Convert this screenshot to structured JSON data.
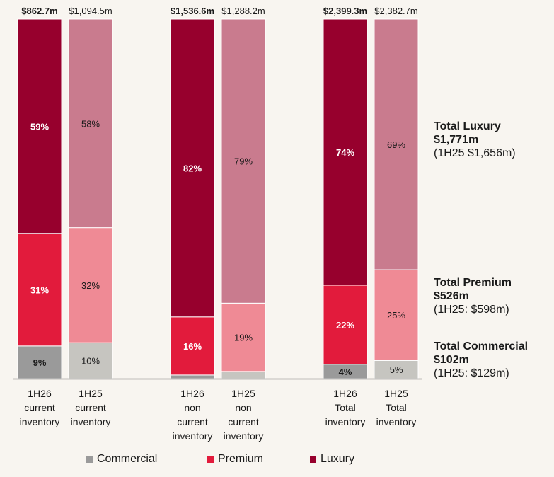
{
  "colors": {
    "luxury": "#97002d",
    "luxury_light": "#c97b8e",
    "premium": "#e21b3c",
    "premium_light": "#ef8a95",
    "commercial": "#9a9a9a",
    "commercial_light": "#c6c5c0"
  },
  "chart_data": {
    "type": "bar",
    "stacked": true,
    "normalized": true,
    "categories": [
      [
        "1H26",
        "current",
        "inventory"
      ],
      [
        "1H25",
        "current",
        "inventory"
      ],
      [
        "1H26",
        "non",
        "current",
        "inventory"
      ],
      [
        "1H25",
        "non",
        "current",
        "inventory"
      ],
      [
        "1H26",
        "Total",
        "inventory"
      ],
      [
        "1H25",
        "Total",
        "inventory"
      ]
    ],
    "totals": [
      "$862.7m",
      "$1,094.5m",
      "$1,536.6m",
      "$1,288.2m",
      "$2,399.3m",
      "$2,382.7m"
    ],
    "current_period": [
      true,
      false,
      true,
      false,
      true,
      false
    ],
    "series": [
      {
        "name": "Commercial",
        "values": [
          9,
          10,
          1,
          2,
          4,
          5
        ],
        "labels": [
          "9%",
          "10%",
          "",
          "",
          "4%",
          "5%"
        ]
      },
      {
        "name": "Premium",
        "values": [
          31,
          32,
          16,
          19,
          22,
          25
        ],
        "labels": [
          "31%",
          "32%",
          "16%",
          "19%",
          "22%",
          "25%"
        ]
      },
      {
        "name": "Luxury",
        "values": [
          59,
          58,
          82,
          79,
          74,
          69
        ],
        "labels": [
          "59%",
          "58%",
          "82%",
          "79%",
          "74%",
          "69%"
        ]
      }
    ],
    "legend": [
      "Commercial",
      "Premium",
      "Luxury"
    ],
    "legend_position": "bottom"
  },
  "summary": {
    "luxury": {
      "title": "Total Luxury",
      "value": "$1,771m",
      "prior": "(1H25 $1,656m)"
    },
    "premium": {
      "title": "Total Premium",
      "value": "$526m",
      "prior": "(1H25: $598m)"
    },
    "commercial": {
      "title": "Total Commercial",
      "value": "$102m",
      "prior": "(1H25: $129m)"
    }
  }
}
